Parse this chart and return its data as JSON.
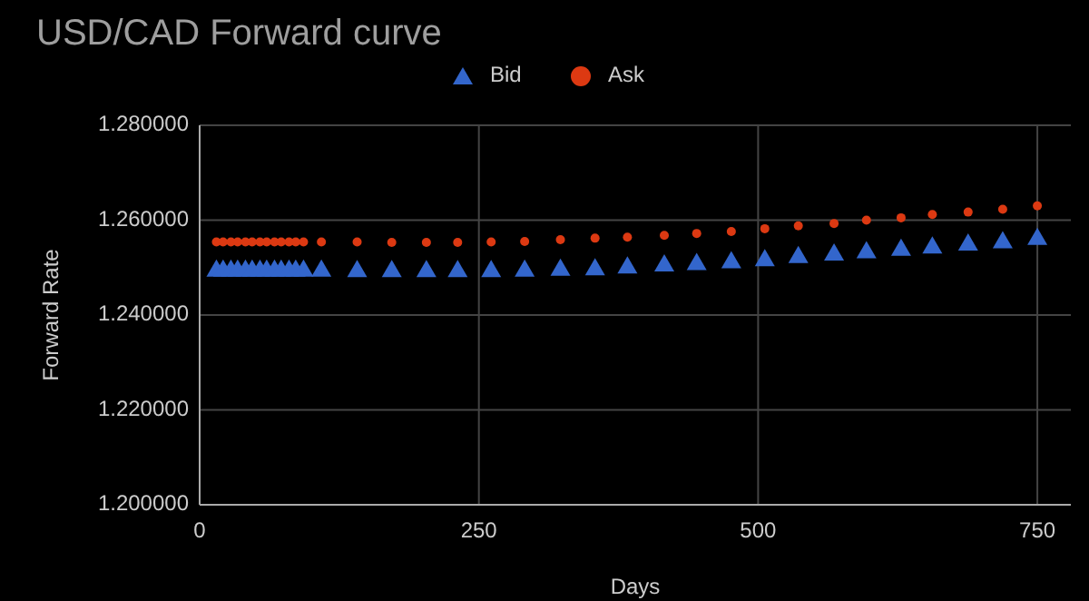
{
  "chart_data": {
    "type": "scatter",
    "title": "USD/CAD Forward curve",
    "xlabel": "Days",
    "ylabel": "Forward Rate",
    "x": [
      15,
      21,
      28,
      34,
      41,
      47,
      54,
      60,
      67,
      73,
      80,
      86,
      93,
      109,
      141,
      172,
      203,
      231,
      261,
      291,
      323,
      354,
      383,
      416,
      445,
      476,
      506,
      536,
      568,
      597,
      628,
      656,
      688,
      719,
      750
    ],
    "series": [
      {
        "name": "Bid",
        "color": "#3366cc",
        "marker": "triangle",
        "values": [
          1.2498,
          1.2498,
          1.2498,
          1.2498,
          1.2498,
          1.2498,
          1.2498,
          1.2498,
          1.2498,
          1.2498,
          1.2498,
          1.2498,
          1.2498,
          1.2498,
          1.2497,
          1.2497,
          1.2497,
          1.2497,
          1.2497,
          1.2498,
          1.25,
          1.2501,
          1.2505,
          1.2509,
          1.2512,
          1.2516,
          1.252,
          1.2527,
          1.2532,
          1.2537,
          1.2542,
          1.2547,
          1.2553,
          1.2558,
          1.2565
        ]
      },
      {
        "name": "Ask",
        "color": "#dc3912",
        "marker": "circle",
        "values": [
          1.2554,
          1.2554,
          1.2554,
          1.2554,
          1.2554,
          1.2554,
          1.2554,
          1.2554,
          1.2554,
          1.2554,
          1.2554,
          1.2554,
          1.2554,
          1.2554,
          1.2554,
          1.2553,
          1.2553,
          1.2553,
          1.2554,
          1.2555,
          1.2559,
          1.2562,
          1.2564,
          1.2568,
          1.2572,
          1.2576,
          1.2582,
          1.2588,
          1.2593,
          1.26,
          1.2605,
          1.2612,
          1.2617,
          1.2623,
          1.263
        ]
      }
    ],
    "xlim": [
      0,
      780
    ],
    "xticks": [
      0,
      250,
      500,
      750
    ],
    "ylim": [
      1.2,
      1.28
    ],
    "yticks": [
      {
        "value": 1.2,
        "label": "1.200000"
      },
      {
        "value": 1.22,
        "label": "1.220000"
      },
      {
        "value": 1.24,
        "label": "1.240000"
      },
      {
        "value": 1.26,
        "label": "1.260000"
      },
      {
        "value": 1.28,
        "label": "1.280000"
      }
    ],
    "grid": true,
    "legend": "top"
  }
}
